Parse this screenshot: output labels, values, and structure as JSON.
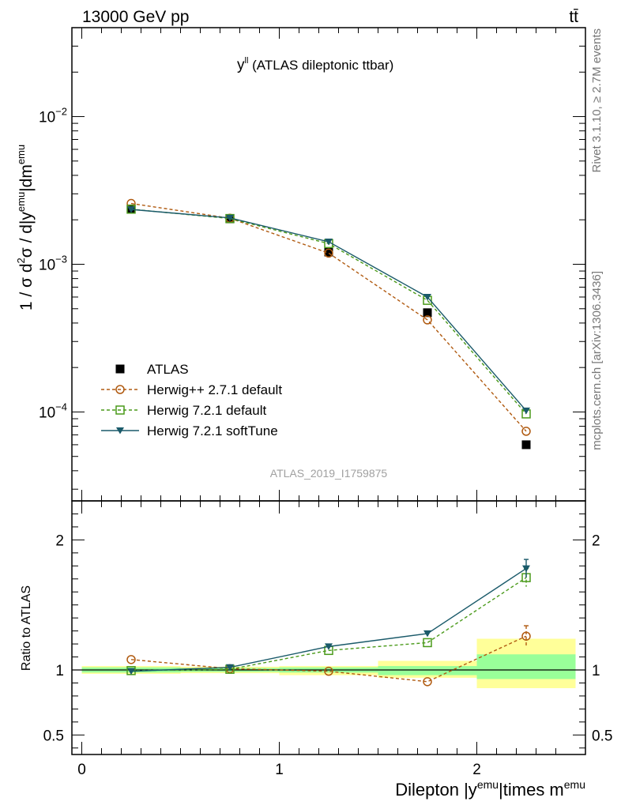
{
  "header": {
    "energy_label": "13000 GeV pp",
    "process_label": "tt̄"
  },
  "side_labels": {
    "rivet": "Rivet 3.1.10, ≥ 2.7M events",
    "mcplots": "mcplots.cern.ch [arXiv:1306.3436]"
  },
  "chart_data": [
    {
      "type": "scatter",
      "panel": "main",
      "title_main": "y",
      "title_sup": "ll",
      "title_rest": " (ATLAS dileptonic ttbar)",
      "watermark": "ATLAS_2019_I1759875",
      "ylabel": "1 / σ d²σ / d|y^emu|dm^emu",
      "ylabel_parts": {
        "p1": "1 / σ  d",
        "sup1": "2",
        "p2": "σ / d|y",
        "sup2": "emu",
        "p3": "|dm",
        "sup3": "emu"
      },
      "yscale": "log",
      "ylim": [
        2.5e-05,
        0.04
      ],
      "xlim": [
        -0.05,
        2.55
      ],
      "yticks": [
        {
          "v": 0.0001,
          "base": "10",
          "exp": "−4"
        },
        {
          "v": 0.001,
          "base": "10",
          "exp": "−3"
        },
        {
          "v": 0.01,
          "base": "10",
          "exp": "−2"
        }
      ],
      "x": [
        0.25,
        0.75,
        1.25,
        1.75,
        2.25
      ],
      "series": [
        {
          "name": "ATLAS",
          "marker": "filled-square",
          "line": "none",
          "color": "#000000",
          "values": [
            0.00237,
            0.00203,
            0.00121,
            0.00047,
            6e-05
          ]
        },
        {
          "name": "Herwig++ 2.7.1 default",
          "marker": "open-circle",
          "line": "dashed",
          "color": "#b05a10",
          "values": [
            0.00258,
            0.00205,
            0.00119,
            0.00042,
            7.4e-05
          ]
        },
        {
          "name": "Herwig 7.2.1 default",
          "marker": "open-square",
          "line": "dashed",
          "color": "#4a9a1a",
          "values": [
            0.00236,
            0.00204,
            0.00138,
            0.00057,
            9.7e-05
          ]
        },
        {
          "name": "Herwig 7.2.1 softTune",
          "marker": "filled-triangle-down",
          "line": "solid",
          "color": "#1a5a6a",
          "values": [
            0.00235,
            0.00206,
            0.00142,
            0.0006,
            0.000102
          ]
        }
      ],
      "legend_position": "lower-left"
    },
    {
      "type": "scatter",
      "panel": "ratio",
      "ylabel": "Ratio to ATLAS",
      "xlabel_parts": {
        "p1": "Dilepton |y",
        "sup1": "emu",
        "p2": "|times m",
        "sup2": "emu"
      },
      "ylim": [
        0.35,
        2.3
      ],
      "xlim": [
        -0.05,
        2.55
      ],
      "yticks": [
        0.5,
        1,
        2
      ],
      "ytick_labels": [
        "0.5",
        "1",
        "2"
      ],
      "xticks": [
        0,
        1,
        2
      ],
      "xtick_labels": [
        "0",
        "1",
        "2"
      ],
      "reference": 1,
      "bins": [
        [
          0,
          0.5
        ],
        [
          0.5,
          1.0
        ],
        [
          1.0,
          1.5
        ],
        [
          1.5,
          2.0
        ],
        [
          2.0,
          2.5
        ]
      ],
      "band_inner": [
        [
          0.98,
          1.02
        ],
        [
          0.985,
          1.015
        ],
        [
          0.98,
          1.02
        ],
        [
          0.96,
          1.03
        ],
        [
          0.93,
          1.12
        ]
      ],
      "band_outer": [
        [
          0.97,
          1.03
        ],
        [
          0.975,
          1.025
        ],
        [
          0.96,
          1.03
        ],
        [
          0.94,
          1.07
        ],
        [
          0.86,
          1.24
        ]
      ],
      "band_colors": {
        "inner": "#99ff99",
        "outer": "#ffff99"
      },
      "x": [
        0.25,
        0.75,
        1.25,
        1.75,
        2.25
      ],
      "series": [
        {
          "name": "Herwig++ 2.7.1 default",
          "color": "#b05a10",
          "marker": "open-circle",
          "line": "dashed",
          "values": [
            1.08,
            1.01,
            0.99,
            0.91,
            1.26
          ],
          "err": [
            0,
            0,
            0,
            0,
            0.08
          ]
        },
        {
          "name": "Herwig 7.2.1 default",
          "color": "#4a9a1a",
          "marker": "open-square",
          "line": "dashed",
          "values": [
            0.995,
            1.005,
            1.15,
            1.21,
            1.71
          ],
          "err": [
            0,
            0,
            0,
            0,
            0.07
          ]
        },
        {
          "name": "Herwig 7.2.1 softTune",
          "color": "#1a5a6a",
          "marker": "filled-triangle-down",
          "line": "solid",
          "values": [
            0.99,
            1.02,
            1.18,
            1.28,
            1.78
          ],
          "err": [
            0,
            0,
            0,
            0,
            0.07
          ]
        }
      ]
    }
  ]
}
